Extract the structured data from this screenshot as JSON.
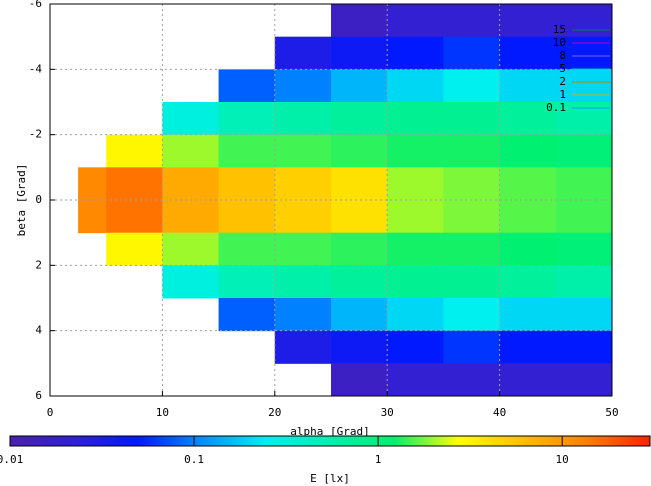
{
  "chart_data": {
    "type": "heatmap",
    "xlabel": "alpha [Grad]",
    "ylabel": "beta [Grad]",
    "colorbar_label": "E [lx]",
    "x_edges": [
      2.5,
      5,
      10,
      15,
      20,
      25,
      30,
      35,
      40,
      45,
      50
    ],
    "y_edges": [
      -6,
      -5,
      -4,
      -3,
      -2,
      -1,
      0,
      1,
      2,
      3,
      4,
      5,
      6
    ],
    "z": [
      [
        null,
        null,
        null,
        null,
        null,
        0.015,
        0.02,
        0.02,
        0.02,
        0.02
      ],
      [
        null,
        null,
        null,
        null,
        0.03,
        0.04,
        0.05,
        0.06,
        0.05,
        0.05
      ],
      [
        null,
        null,
        null,
        0.08,
        0.1,
        0.15,
        0.2,
        0.25,
        0.2,
        0.2
      ],
      [
        null,
        null,
        0.3,
        0.5,
        0.6,
        0.7,
        0.8,
        0.8,
        0.7,
        0.6
      ],
      [
        null,
        3,
        2,
        1.5,
        1.5,
        1.4,
        1.3,
        1.3,
        1.2,
        1.1
      ],
      [
        12,
        15,
        8,
        6,
        5,
        4,
        2,
        1.8,
        1.6,
        1.5
      ],
      [
        12,
        15,
        8,
        6,
        5,
        4,
        2,
        1.8,
        1.6,
        1.5
      ],
      [
        null,
        3,
        2,
        1.5,
        1.5,
        1.4,
        1.3,
        1.3,
        1.2,
        1.1
      ],
      [
        null,
        null,
        0.3,
        0.5,
        0.6,
        0.7,
        0.8,
        0.8,
        0.7,
        0.6
      ],
      [
        null,
        null,
        null,
        0.08,
        0.1,
        0.15,
        0.2,
        0.25,
        0.2,
        0.2
      ],
      [
        null,
        null,
        null,
        null,
        0.03,
        0.04,
        0.05,
        0.06,
        0.05,
        0.05
      ],
      [
        null,
        null,
        null,
        null,
        null,
        0.015,
        0.02,
        0.02,
        0.02,
        0.02
      ]
    ],
    "xlim": [
      0,
      50
    ],
    "xticks": [
      0,
      10,
      20,
      30,
      40,
      50
    ],
    "ylim": [
      -6,
      6
    ],
    "yticks": [
      -6,
      -4,
      -2,
      0,
      2,
      4,
      6
    ],
    "y_inverted": true,
    "clim": [
      0.01,
      30
    ],
    "cticks": [
      0.01,
      0.1,
      1,
      10
    ],
    "color_scale": "log",
    "palette": [
      "#4b20b0",
      "#3020d8",
      "#0018ff",
      "#0090ff",
      "#00f0f0",
      "#00f0b0",
      "#00f070",
      "#ffff00",
      "#ffc000",
      "#ff8000",
      "#ff2000"
    ],
    "grid": true,
    "contours": [
      {
        "name": "15",
        "color": "#008040"
      },
      {
        "name": "10",
        "color": "#c000c0"
      },
      {
        "name": "8",
        "color": "#8060ff"
      },
      {
        "name": "5",
        "color": "#00c0c0"
      },
      {
        "name": "2",
        "color": "#c08000"
      },
      {
        "name": "1",
        "color": "#d0b000"
      },
      {
        "name": "0.1",
        "color": "#00a0ff"
      }
    ]
  }
}
